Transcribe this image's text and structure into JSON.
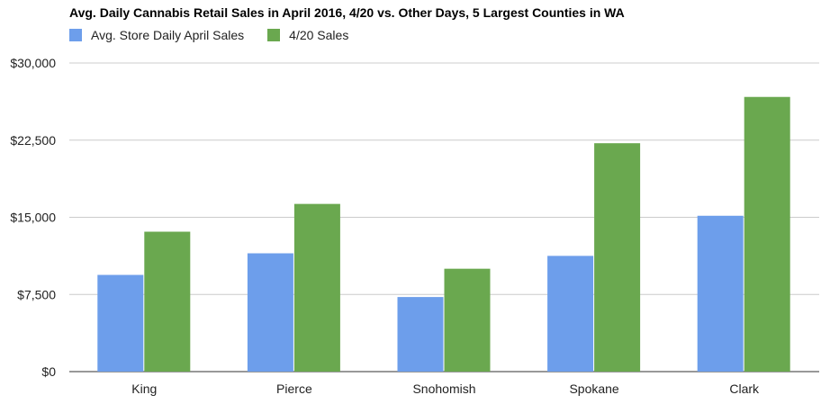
{
  "chart_data": {
    "type": "bar",
    "title": "Avg. Daily Cannabis Retail Sales in April 2016, 4/20 vs. Other Days, 5 Largest Counties in WA",
    "xlabel": "",
    "ylabel": "",
    "categories": [
      "King",
      "Pierce",
      "Snohomish",
      "Spokane",
      "Clark"
    ],
    "series": [
      {
        "name": "Avg. Store Daily April Sales",
        "color": "#6d9eeb",
        "values": [
          9400,
          11500,
          7250,
          11250,
          15150
        ]
      },
      {
        "name": "4/20 Sales",
        "color": "#6aa84f",
        "values": [
          13600,
          16300,
          10000,
          22200,
          26700
        ]
      }
    ],
    "ylim": [
      0,
      30000
    ],
    "yticks": [
      0,
      7500,
      15000,
      22500,
      30000
    ],
    "ytick_labels": [
      "$0",
      "$7,500",
      "$15,000",
      "$22,500",
      "$30,000"
    ],
    "grid": true,
    "legend_position": "top-left"
  }
}
